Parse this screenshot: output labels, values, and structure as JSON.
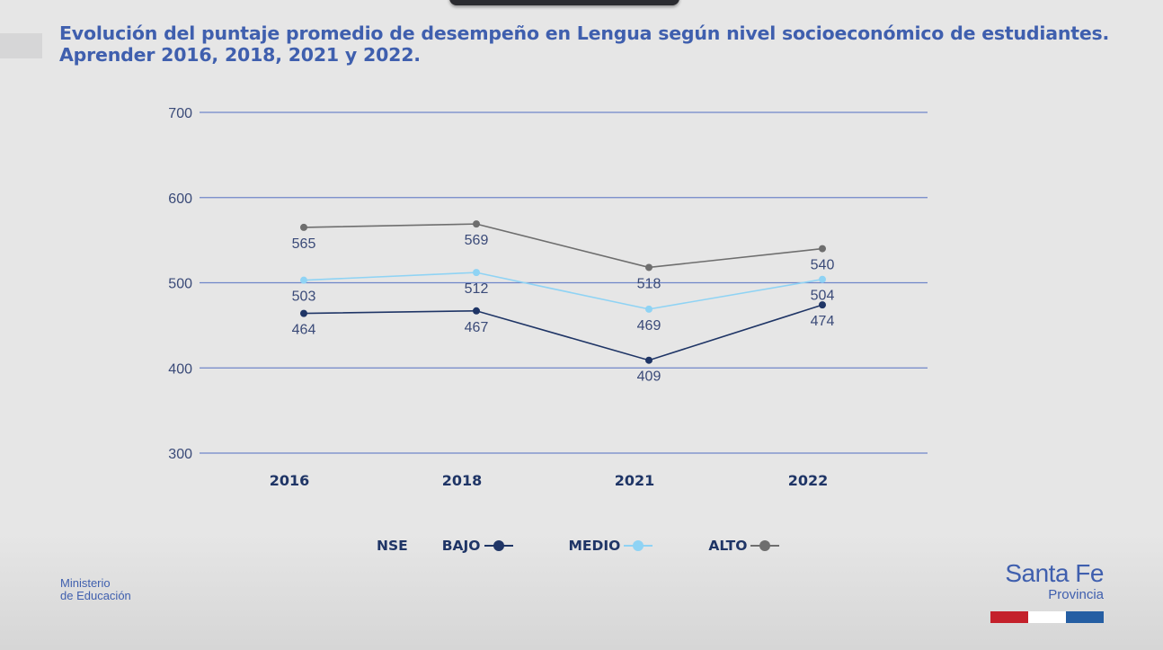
{
  "title": {
    "line1": "Evolución del puntaje promedio de desempeño en Lengua según nivel socioeconómico de estudiantes.",
    "line2": "Aprender 2016, 2018, 2021 y 2022."
  },
  "chart_data": {
    "type": "line",
    "title": "Evolución del puntaje promedio de desempeño en Lengua según nivel socioeconómico de estudiantes. Aprender 2016, 2018, 2021 y 2022.",
    "xlabel": "",
    "ylabel": "",
    "categories": [
      "2016",
      "2018",
      "2021",
      "2022"
    ],
    "ylim": [
      300,
      700
    ],
    "yticks": [
      700,
      600,
      500,
      400,
      300
    ],
    "grid": true,
    "legend_title": "NSE",
    "legend_position": "bottom",
    "series": [
      {
        "name": "BAJO",
        "color": "#1f3566",
        "values": [
          464,
          467,
          409,
          474
        ]
      },
      {
        "name": "MEDIO",
        "color": "#8fd3f4",
        "values": [
          503,
          512,
          469,
          504
        ]
      },
      {
        "name": "ALTO",
        "color": "#6e6e6e",
        "values": [
          565,
          569,
          518,
          540
        ]
      }
    ]
  },
  "colors": {
    "title": "#3f5fae",
    "grid": "#6f86c9",
    "axis_text": "#3a4a78",
    "flag_red": "#c4212b",
    "flag_white": "#ffffff",
    "flag_blue": "#255ea3"
  },
  "footer": {
    "ministry_line1": "Ministerio",
    "ministry_line2": "de Educación",
    "brand_name": "Santa Fe",
    "brand_sub": "Provincia"
  }
}
